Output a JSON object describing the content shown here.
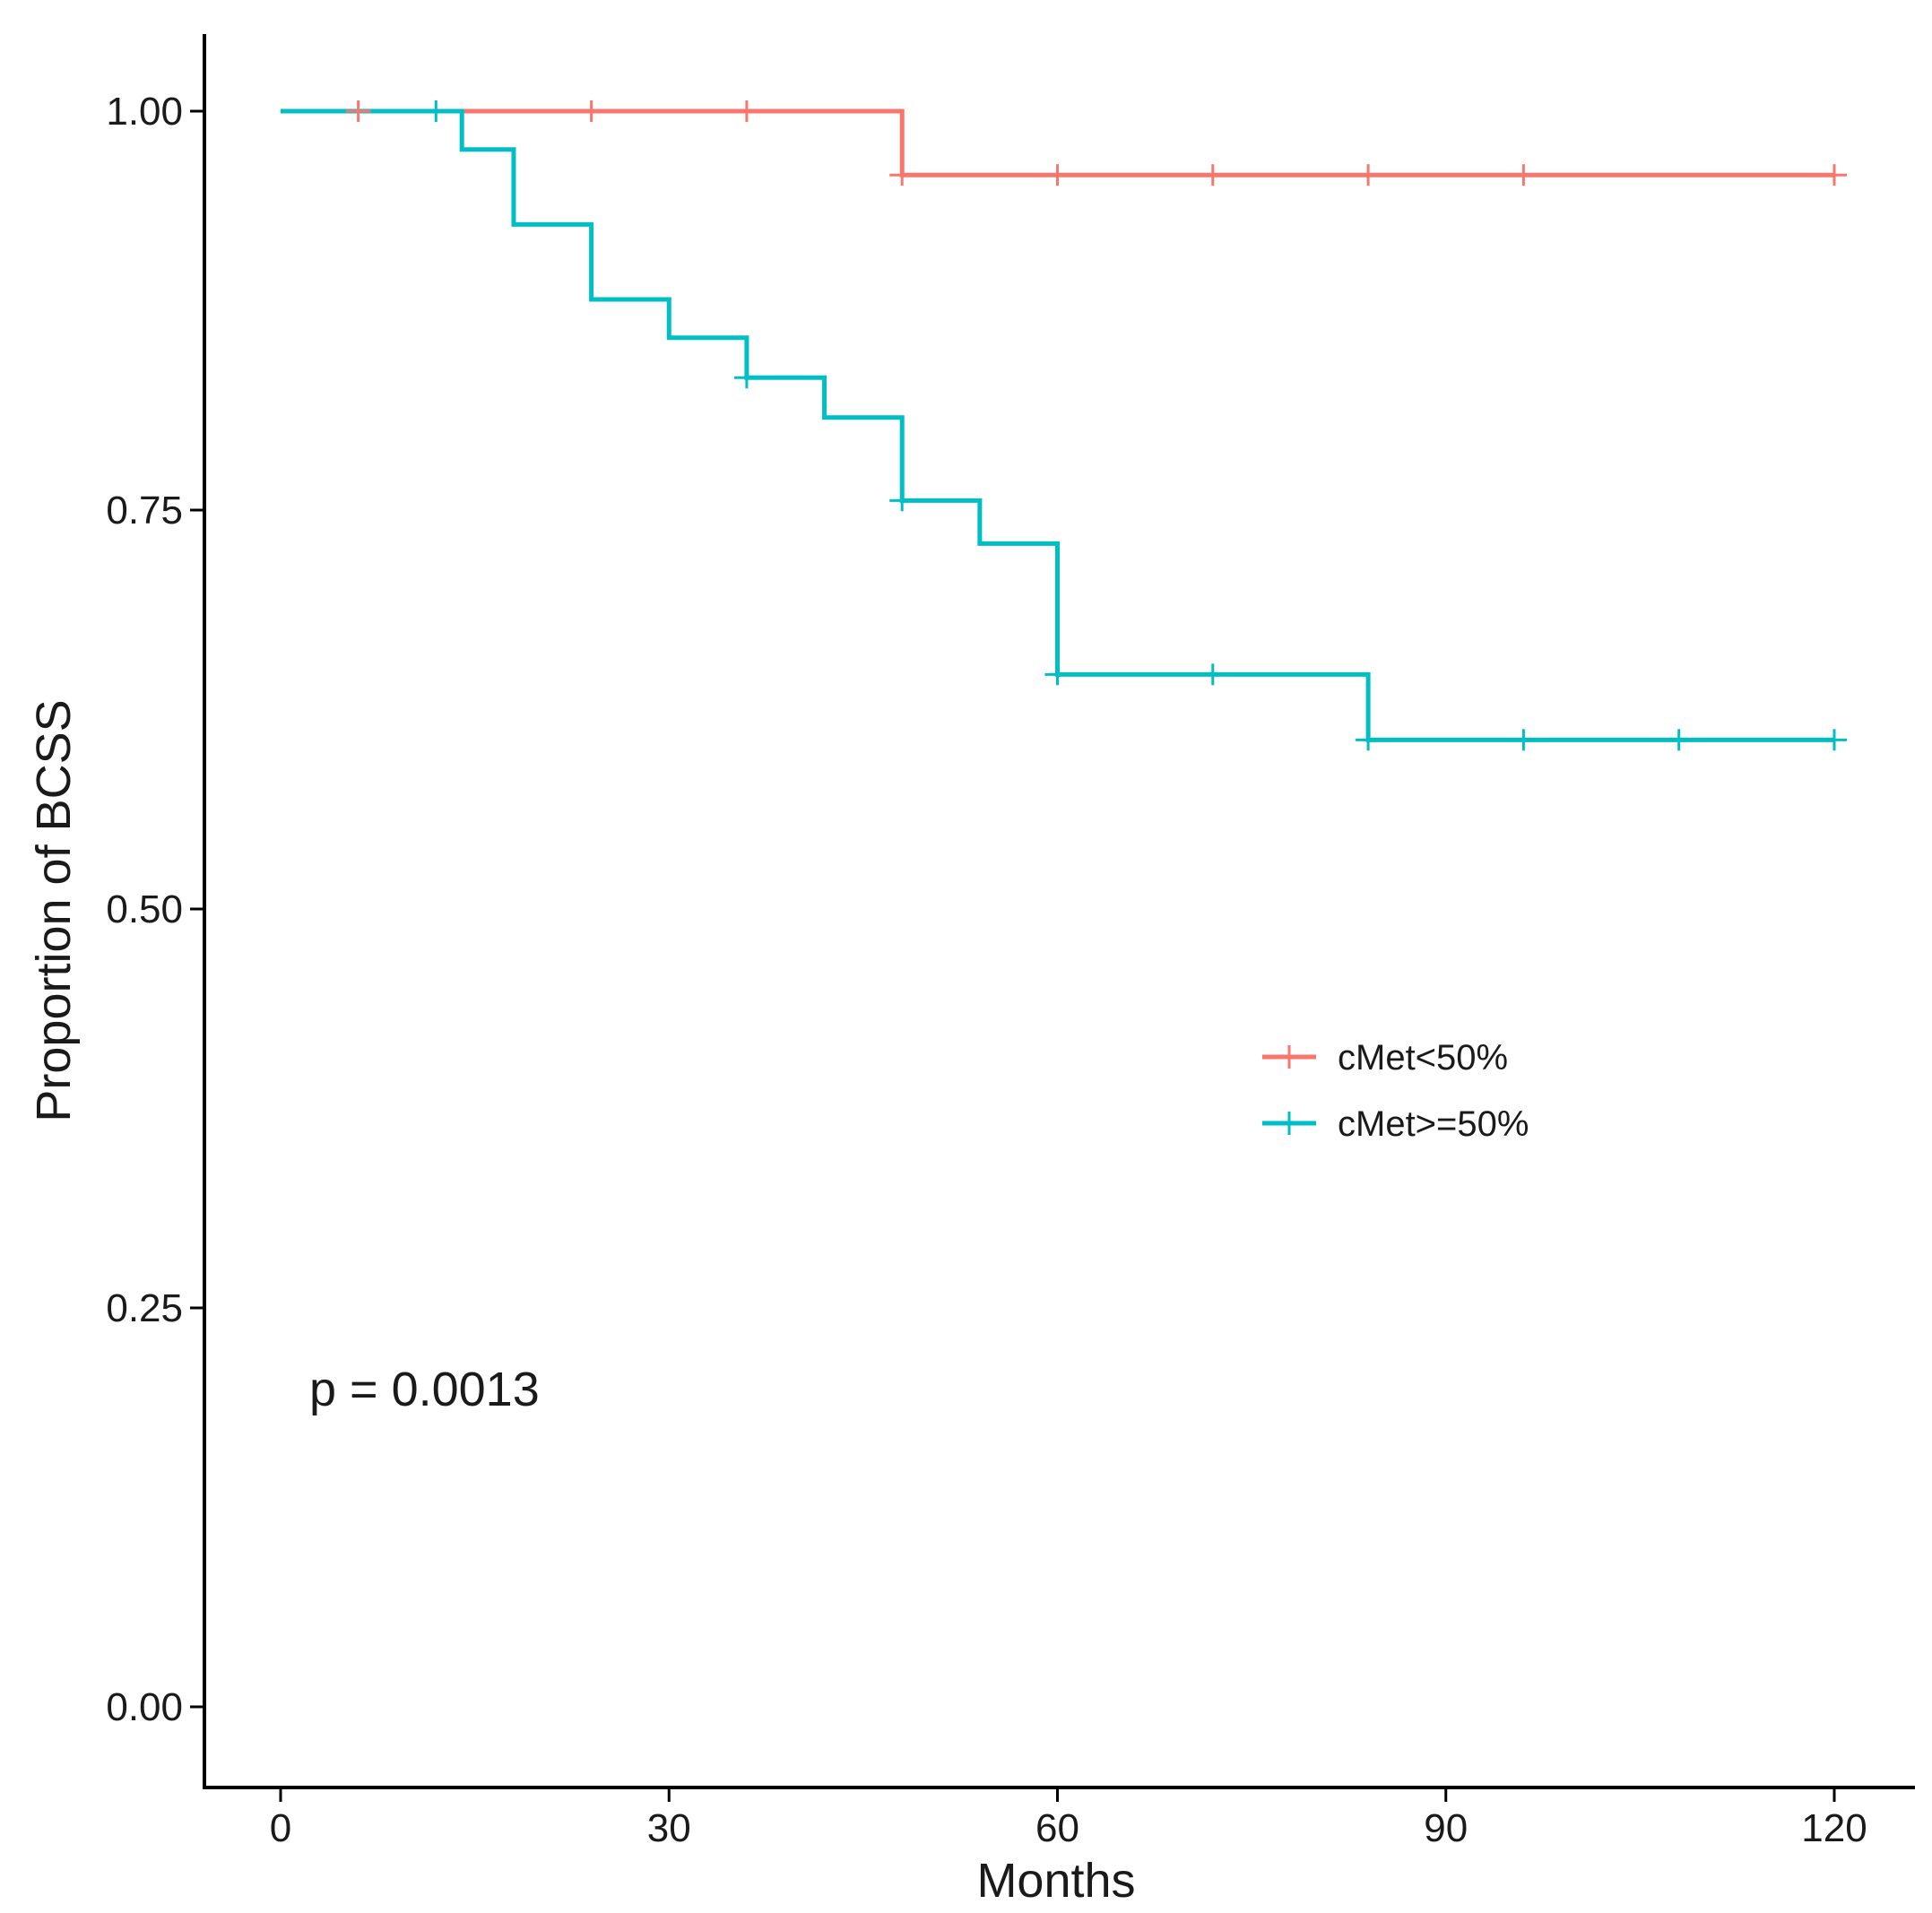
{
  "chart_data": {
    "type": "line",
    "subtype": "kaplan-meier-step",
    "title": "",
    "xlabel": "Months",
    "ylabel": "Proportion of BCSS",
    "xlim": [
      -6,
      125
    ],
    "ylim": [
      -0.05,
      1.05
    ],
    "x_ticks": [
      0,
      30,
      60,
      90,
      120
    ],
    "x_tick_labels": [
      "0",
      "30",
      "60",
      "90",
      "120"
    ],
    "y_ticks": [
      0,
      0.25,
      0.5,
      0.75,
      1.0
    ],
    "y_tick_labels": [
      "0.00",
      "0.25",
      "0.50",
      "0.75",
      "1.00"
    ],
    "grid": false,
    "legend_position": "right-center",
    "annotation": "p = 0.0013",
    "series": [
      {
        "name": "cMet<50%",
        "color": "#F8766D",
        "steps": [
          [
            0,
            1.0
          ],
          [
            48,
            0.96
          ],
          [
            120,
            0.96
          ]
        ],
        "censored": [
          [
            6,
            1.0
          ],
          [
            24,
            1.0
          ],
          [
            36,
            1.0
          ],
          [
            48,
            0.96
          ],
          [
            60,
            0.96
          ],
          [
            72,
            0.96
          ],
          [
            84,
            0.96
          ],
          [
            96,
            0.96
          ],
          [
            120,
            0.96
          ]
        ]
      },
      {
        "name": "cMet>=50%",
        "color": "#00BFC4",
        "steps": [
          [
            0,
            1.0
          ],
          [
            14,
            0.976
          ],
          [
            18,
            0.929
          ],
          [
            24,
            0.882
          ],
          [
            30,
            0.858
          ],
          [
            36,
            0.833
          ],
          [
            42,
            0.808
          ],
          [
            48,
            0.756
          ],
          [
            54,
            0.729
          ],
          [
            60,
            0.647
          ],
          [
            84,
            0.606
          ],
          [
            120,
            0.606
          ]
        ],
        "censored": [
          [
            12,
            1.0
          ],
          [
            36,
            0.833
          ],
          [
            48,
            0.756
          ],
          [
            60,
            0.647
          ],
          [
            72,
            0.647
          ],
          [
            84,
            0.606
          ],
          [
            96,
            0.606
          ],
          [
            108,
            0.606
          ],
          [
            120,
            0.606
          ]
        ]
      }
    ]
  }
}
